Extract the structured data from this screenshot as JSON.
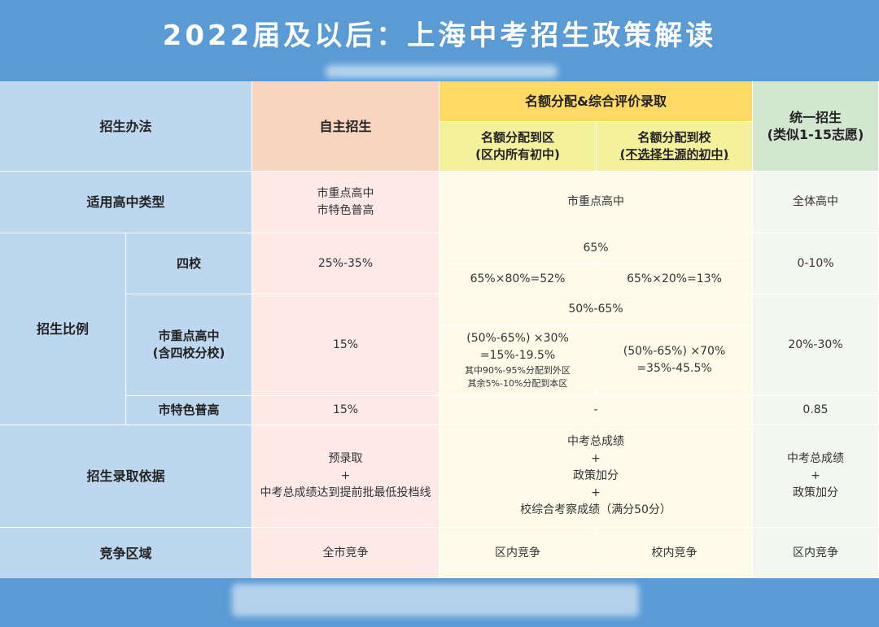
{
  "title": "2022届及以后：上海中考招生政策解读",
  "header": {
    "method": "招生办法",
    "self": "自主招生",
    "quota": "名额分配&综合评价录取",
    "quota_district": "名额分配到区",
    "quota_district_note": "(区内所有初中)",
    "quota_school": "名额分配到校",
    "quota_school_note": "(不选择生源的初中)",
    "unified": "统一招生",
    "unified_note": "(类似1-15志愿)"
  },
  "rows": {
    "type": {
      "label": "适用高中类型",
      "self_1": "市重点高中",
      "self_2": "市特色普高",
      "quota": "市重点高中",
      "unified": "全体高中"
    },
    "ratio": {
      "label": "招生比例",
      "four": {
        "label": "四校",
        "self": "25%-35%",
        "quota": "65%",
        "district": "65%×80%=52%",
        "school": "65%×20%=13%",
        "unified": "0-10%"
      },
      "key": {
        "label_1": "市重点高中",
        "label_2": "(含四校分校)",
        "self": "15%",
        "quota": "50%-65%",
        "district_1": "(50%-65%) ×30%",
        "district_2": "=15%-19.5%",
        "district_3": "其中90%-95%分配到外区",
        "district_4": "其余5%-10%分配到本区",
        "school_1": "(50%-65%) ×70%",
        "school_2": "=35%-45.5%",
        "unified": "20%-30%"
      },
      "feature": {
        "label": "市特色普高",
        "self": "15%",
        "quota": "-",
        "unified": "0.85"
      }
    },
    "basis": {
      "label": "招生录取依据",
      "self_1": "预录取",
      "self_2": "+",
      "self_3": "中考总成绩达到提前批最低投档线",
      "quota_1": "中考总成绩",
      "quota_2": "+",
      "quota_3": "政策加分",
      "quota_4": "+",
      "quota_5": "校综合考察成绩（满分50分）",
      "unified_1": "中考总成绩",
      "unified_2": "+",
      "unified_3": "政策加分"
    },
    "area": {
      "label": "竞争区域",
      "self": "全市竞争",
      "district": "区内竞争",
      "school": "校内竞争",
      "unified": "区内竞争"
    }
  }
}
